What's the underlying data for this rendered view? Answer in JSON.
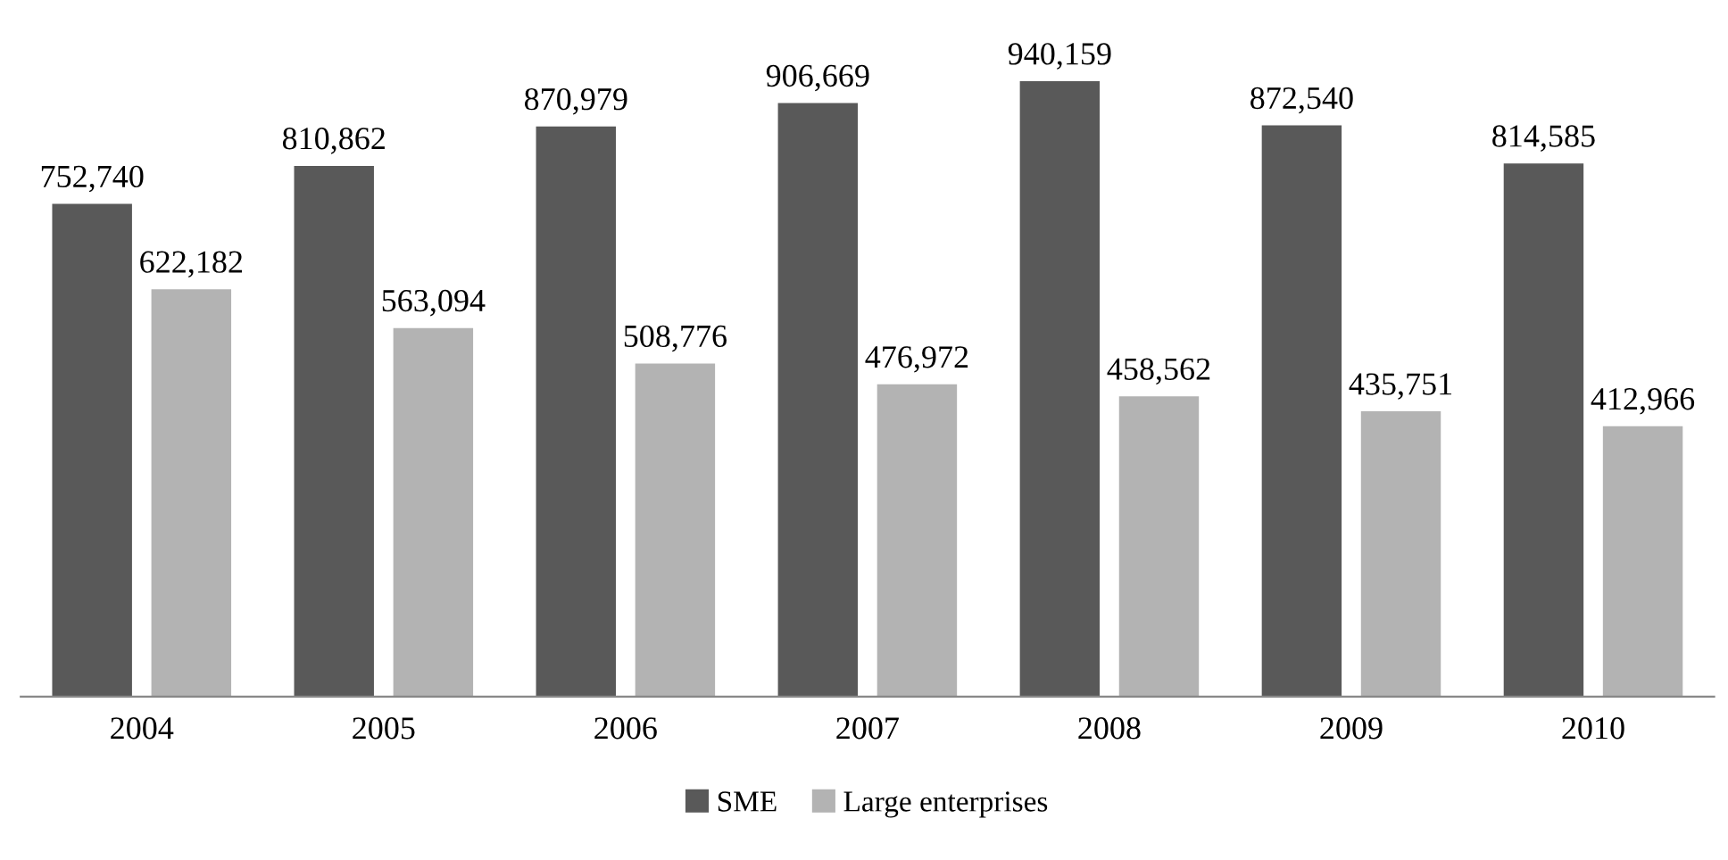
{
  "chart_data": {
    "type": "bar",
    "categories": [
      "2004",
      "2005",
      "2006",
      "2007",
      "2008",
      "2009",
      "2010"
    ],
    "series": [
      {
        "name": "SME",
        "color": "#595959",
        "values": [
          752740,
          810862,
          870979,
          906669,
          940159,
          872540,
          814585
        ],
        "value_labels": [
          "752,740",
          "810,862",
          "870,979",
          "906,669",
          "940,159",
          "872,540",
          "814,585"
        ]
      },
      {
        "name": "Large enterprises",
        "color": "#b3b3b3",
        "values": [
          622182,
          563094,
          508776,
          476972,
          458562,
          435751,
          412966
        ],
        "value_labels": [
          "622,182",
          "563,094",
          "508,776",
          "476,972",
          "458,562",
          "435,751",
          "412,966"
        ]
      }
    ],
    "legend": "bottom",
    "grid": false,
    "tick_labels": "x"
  }
}
